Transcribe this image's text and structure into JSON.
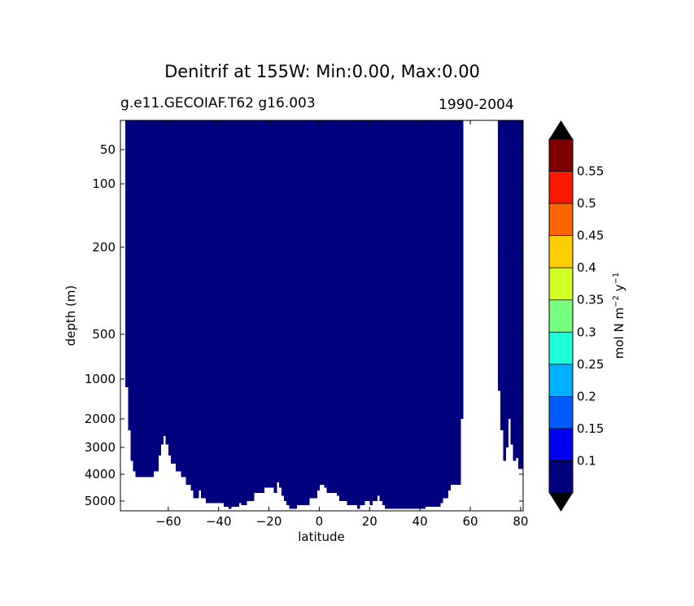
{
  "chart_data": {
    "type": "heatmap",
    "title": "Denitrif at 155W: Min:0.00, Max:0.00",
    "subtitle_left": "g.e11.GECOIAF.T62 g16.003",
    "subtitle_right": "1990-2004",
    "xlabel": "latitude",
    "ylabel": "depth (m)",
    "x_ticks": [
      -60,
      -40,
      -20,
      0,
      20,
      40,
      60,
      80
    ],
    "x_tick_labels": [
      "−60",
      "−40",
      "−20",
      "0",
      "20",
      "40",
      "60",
      "80"
    ],
    "xlim": [
      -79,
      81
    ],
    "y_ticks": [
      50,
      100,
      200,
      500,
      1000,
      2000,
      3000,
      4000,
      5000
    ],
    "y_tick_labels": [
      "50",
      "100",
      "200",
      "500",
      "1000",
      "2000",
      "3000",
      "4000",
      "5000"
    ],
    "y_axis": "depth, inverted, nonlinear",
    "colorbar": {
      "label": "mol N m−2 y−1",
      "label_parts": [
        "mol N m",
        "−2",
        " y",
        "−1"
      ],
      "levels": [
        0.05,
        0.1,
        0.15,
        0.2,
        0.25,
        0.3,
        0.35,
        0.4,
        0.45,
        0.5,
        0.55,
        0.6
      ],
      "tick_values": [
        0.1,
        0.15,
        0.2,
        0.25,
        0.3,
        0.35,
        0.4,
        0.45,
        0.5,
        0.55
      ],
      "tick_labels": [
        "0.1",
        "0.15",
        "0.2",
        "0.25",
        "0.3",
        "0.35",
        "0.4",
        "0.45",
        "0.5",
        "0.55"
      ],
      "colors": [
        "#00007f",
        "#0000f0",
        "#005cff",
        "#00b0ff",
        "#1cffda",
        "#77ff80",
        "#d0ff26",
        "#ffcc00",
        "#ff6600",
        "#ff1800",
        "#7f0000"
      ],
      "extend": "both",
      "under_color": "#000000",
      "over_color": "#000000"
    },
    "field": {
      "value_everywhere": "below 0.1 (lowest level)",
      "fill_color": "#00007f",
      "missing_color": "#ffffff",
      "ocean_lat_range": [
        -77,
        80
      ],
      "land_gap_lat": [
        57,
        71
      ],
      "bottom_depth_profile": [
        [
          -77,
          1200
        ],
        [
          -76,
          2400
        ],
        [
          -75,
          3500
        ],
        [
          -74,
          3900
        ],
        [
          -73,
          4100
        ],
        [
          -67,
          4100
        ],
        [
          -66,
          3900
        ],
        [
          -64,
          3300
        ],
        [
          -63,
          2900
        ],
        [
          -62,
          2600
        ],
        [
          -61,
          2900
        ],
        [
          -60,
          3300
        ],
        [
          -59,
          3600
        ],
        [
          -57,
          3900
        ],
        [
          -55,
          4100
        ],
        [
          -53,
          4400
        ],
        [
          -51,
          4600
        ],
        [
          -50,
          4900
        ],
        [
          -48,
          4600
        ],
        [
          -47,
          4900
        ],
        [
          -45,
          5100
        ],
        [
          -39,
          5100
        ],
        [
          -38,
          5300
        ],
        [
          -36,
          5400
        ],
        [
          -35,
          5300
        ],
        [
          -32,
          5100
        ],
        [
          -31,
          5200
        ],
        [
          -29,
          5000
        ],
        [
          -26,
          4700
        ],
        [
          -22,
          4500
        ],
        [
          -18,
          4700
        ],
        [
          -17,
          4300
        ],
        [
          -16,
          4500
        ],
        [
          -15,
          4800
        ],
        [
          -14,
          5000
        ],
        [
          -13,
          5200
        ],
        [
          -12,
          5400
        ],
        [
          -9,
          5200
        ],
        [
          -4,
          4900
        ],
        [
          -1,
          4600
        ],
        [
          0,
          4400
        ],
        [
          2,
          4500
        ],
        [
          3,
          4700
        ],
        [
          7,
          4800
        ],
        [
          8,
          5000
        ],
        [
          11,
          5200
        ],
        [
          15,
          5400
        ],
        [
          16,
          5200
        ],
        [
          18,
          5000
        ],
        [
          20,
          5200
        ],
        [
          21,
          5000
        ],
        [
          23,
          4800
        ],
        [
          24,
          5000
        ],
        [
          25,
          5200
        ],
        [
          26,
          5400
        ],
        [
          42,
          5300
        ],
        [
          48,
          5100
        ],
        [
          49,
          4900
        ],
        [
          51,
          4600
        ],
        [
          52,
          4400
        ],
        [
          55,
          4400
        ],
        [
          56,
          2000
        ],
        [
          57,
          60
        ],
        [
          71,
          1300
        ],
        [
          72,
          2400
        ],
        [
          73,
          3500
        ],
        [
          74,
          3000
        ],
        [
          75,
          2000
        ],
        [
          76,
          2900
        ],
        [
          77,
          3500
        ],
        [
          78,
          3400
        ],
        [
          79,
          3800
        ],
        [
          80,
          3800
        ]
      ]
    }
  }
}
